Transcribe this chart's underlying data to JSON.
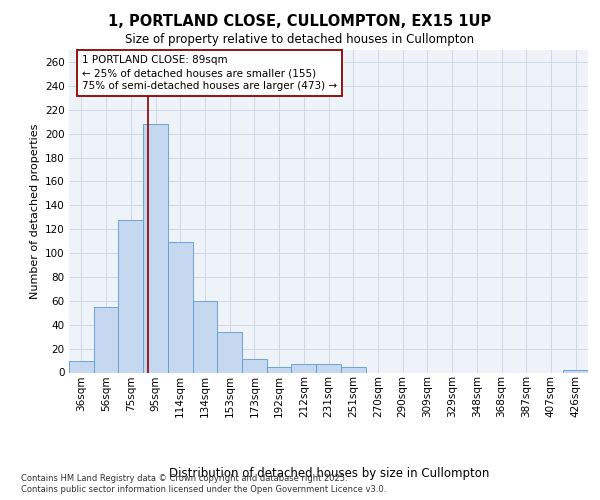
{
  "title_line1": "1, PORTLAND CLOSE, CULLOMPTON, EX15 1UP",
  "title_line2": "Size of property relative to detached houses in Cullompton",
  "xlabel": "Distribution of detached houses by size in Cullompton",
  "ylabel": "Number of detached properties",
  "categories": [
    "36sqm",
    "56sqm",
    "75sqm",
    "95sqm",
    "114sqm",
    "134sqm",
    "153sqm",
    "173sqm",
    "192sqm",
    "212sqm",
    "231sqm",
    "251sqm",
    "270sqm",
    "290sqm",
    "309sqm",
    "329sqm",
    "348sqm",
    "368sqm",
    "387sqm",
    "407sqm",
    "426sqm"
  ],
  "values": [
    10,
    55,
    128,
    208,
    109,
    60,
    34,
    11,
    5,
    7,
    7,
    5,
    0,
    0,
    0,
    0,
    0,
    0,
    0,
    0,
    2
  ],
  "bar_color": "#c5d8f0",
  "bar_edge_color": "#5b9bd5",
  "grid_color": "#d0d8e8",
  "background_color": "#eef2f9",
  "annotation_line1": "1 PORTLAND CLOSE: 89sqm",
  "annotation_line2": "← 25% of detached houses are smaller (155)",
  "annotation_line3": "75% of semi-detached houses are larger (473) →",
  "ylim": [
    0,
    270
  ],
  "yticks": [
    0,
    20,
    40,
    60,
    80,
    100,
    120,
    140,
    160,
    180,
    200,
    220,
    240,
    260
  ],
  "footer_line1": "Contains HM Land Registry data © Crown copyright and database right 2025.",
  "footer_line2": "Contains public sector information licensed under the Open Government Licence v3.0."
}
